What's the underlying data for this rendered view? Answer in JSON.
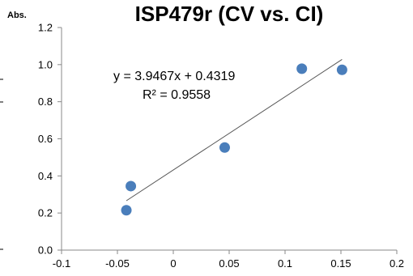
{
  "chart_data": {
    "type": "scatter",
    "title": "ISP479r (CV vs. CI)",
    "ylabel": "Abs.",
    "xlabel": "",
    "xlim": [
      -0.1,
      0.2
    ],
    "ylim": [
      0.0,
      1.2
    ],
    "xticks": [
      "-0.1",
      "-0.05",
      "0",
      "0.05",
      "0.1",
      "0.15",
      "0.2"
    ],
    "yticks": [
      "0.0",
      "0.2",
      "0.4",
      "0.6",
      "0.8",
      "1.0",
      "1.2"
    ],
    "grid": false,
    "legend": "none",
    "marker_color": "#4a7ebb",
    "series": [
      {
        "x": [
          -0.042,
          -0.038,
          0.046,
          0.115,
          0.151
        ],
        "y": [
          0.215,
          0.345,
          0.553,
          0.978,
          0.972
        ]
      }
    ],
    "trendline": {
      "slope": 3.9467,
      "intercept": 0.4319,
      "x_range": [
        -0.042,
        0.151
      ],
      "color": "#555555"
    },
    "annotations": {
      "equation": "y = 3.9467x + 0.4319",
      "r_squared": "R² = 0.9558"
    }
  }
}
